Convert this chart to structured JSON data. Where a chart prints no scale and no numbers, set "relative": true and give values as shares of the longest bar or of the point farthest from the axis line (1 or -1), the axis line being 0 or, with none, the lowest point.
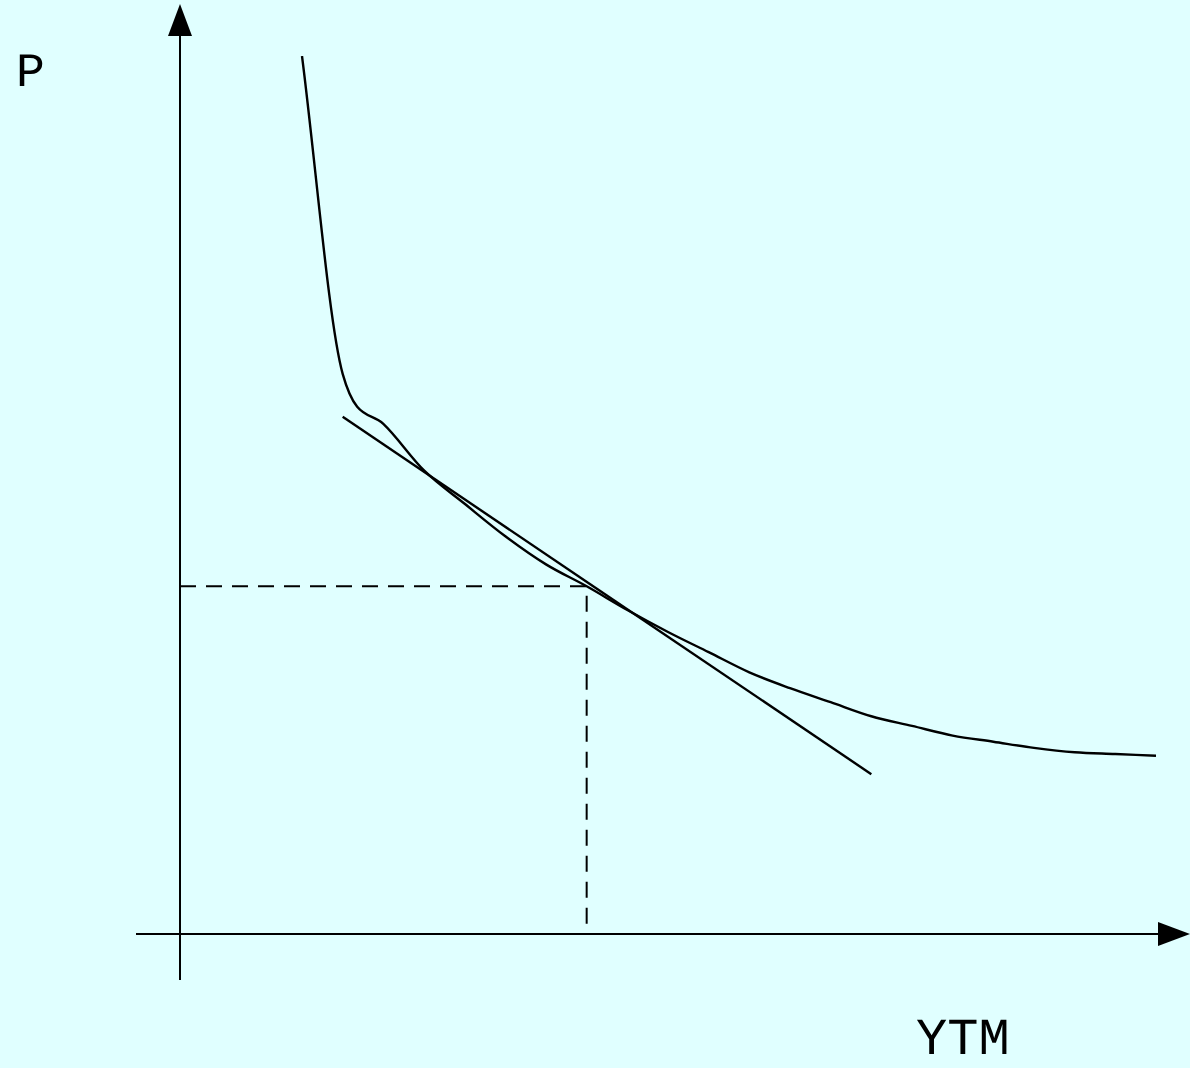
{
  "chart_data": {
    "type": "line",
    "relative": true,
    "xlabel": "YTM",
    "ylabel": "P",
    "marker": "none",
    "categories": [
      null,
      null,
      null,
      null,
      null,
      null,
      null,
      null,
      null,
      null,
      null,
      null,
      null,
      null,
      null,
      null,
      null,
      null,
      null,
      null,
      null,
      null,
      null,
      null,
      null
    ],
    "series": [
      {
        "color": "#000000",
        "values": [
          null,
          null,
          null,
          1,
          0.638,
          0.581,
          0.528,
          0.49,
          0.453,
          0.421,
          0.396,
          0.369,
          0.344,
          0.321,
          0.298,
          0.28,
          0.264,
          0.248,
          0.237,
          0.226,
          0.219,
          0.212,
          0.207,
          0.205,
          0.203
        ]
      },
      {
        "color": "#000000",
        "values": [
          null,
          null,
          null,
          null,
          0.589,
          null,
          null,
          null,
          null,
          null,
          null,
          null,
          null,
          null,
          null,
          null,
          null,
          0.182,
          null,
          null,
          null,
          null,
          null,
          null,
          null
        ]
      }
    ],
    "ref_lines": [
      {
        "axis": "y",
        "value": 0.396,
        "color": "#000000",
        "line_style": "dashed"
      }
    ]
  }
}
